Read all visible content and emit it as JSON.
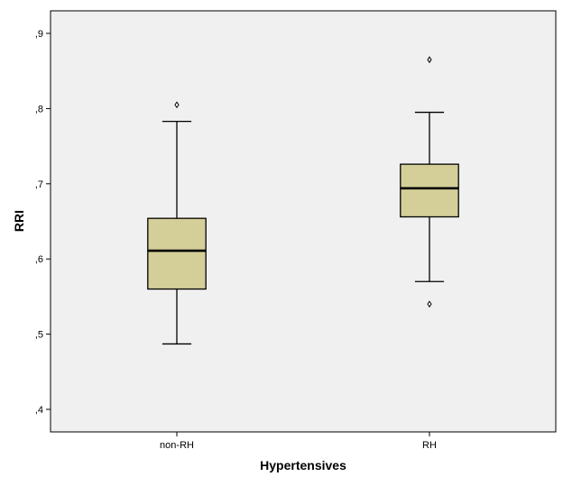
{
  "chart_data": {
    "type": "boxplot",
    "xlabel": "Hypertensives",
    "ylabel": "RRI",
    "ylim": [
      0.37,
      0.93
    ],
    "yticks": [
      0.4,
      0.5,
      0.6,
      0.7,
      0.8,
      0.9
    ],
    "ytick_labels": [
      ",4",
      ",5",
      ",6",
      ",7",
      ",8",
      ",9"
    ],
    "grid": false,
    "colors": {
      "plot_background": "#f0f0f0",
      "box_fill": "#d4cf99",
      "line": "#000000"
    },
    "groups": [
      {
        "category": "non-RH",
        "whisker_low": 0.487,
        "q1": 0.56,
        "median": 0.611,
        "q3": 0.654,
        "whisker_high": 0.783,
        "outliers": [
          0.805
        ]
      },
      {
        "category": "RH",
        "whisker_low": 0.57,
        "q1": 0.656,
        "median": 0.694,
        "q3": 0.726,
        "whisker_high": 0.795,
        "outliers": [
          0.54,
          0.865
        ]
      }
    ]
  }
}
